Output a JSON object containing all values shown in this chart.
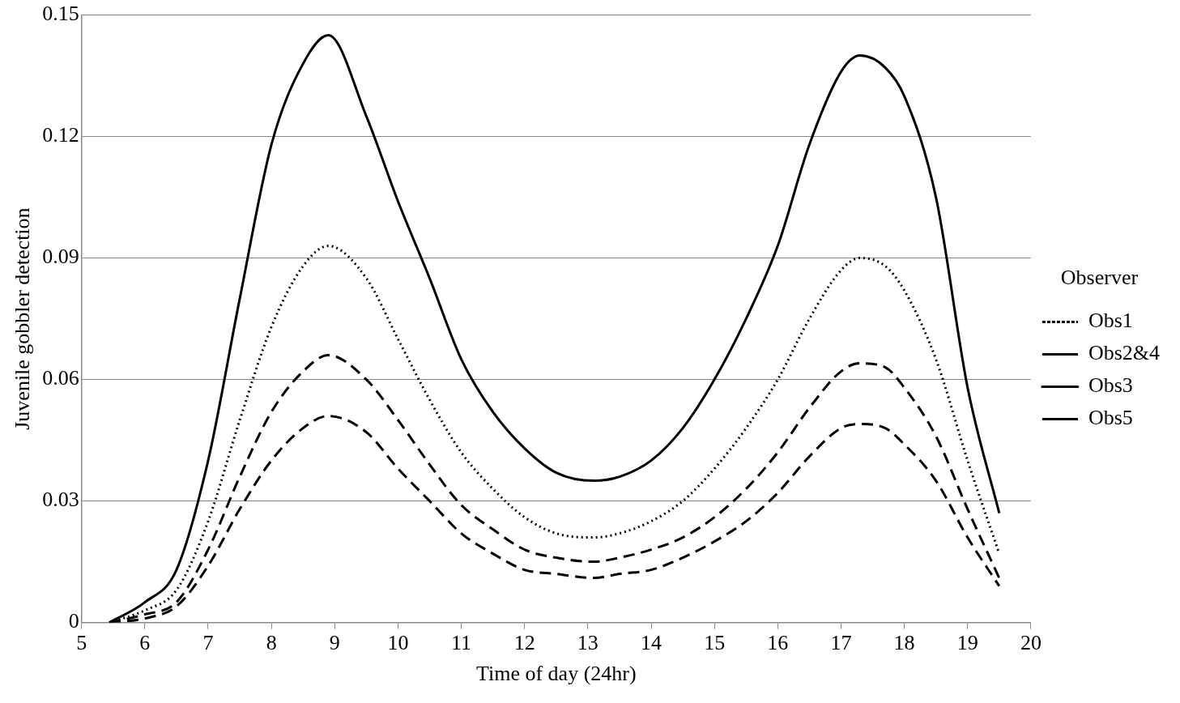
{
  "chart_data": {
    "type": "line",
    "xlabel": "Time of day (24hr)",
    "ylabel": "Juvenile gobbler detection",
    "legend_title": "Observer",
    "legend": "right",
    "grid": "y",
    "marker": "none",
    "xlim": [
      5,
      20
    ],
    "xticks": [
      5,
      6,
      7,
      8,
      9,
      10,
      11,
      12,
      13,
      14,
      15,
      16,
      17,
      18,
      19,
      20
    ],
    "ylim": [
      0,
      0.15
    ],
    "yticks": [
      0,
      0.03,
      0.06,
      0.09,
      0.12,
      0.15
    ],
    "x": [
      5.44,
      6,
      6.5,
      7,
      7.5,
      8,
      8.5,
      8.9,
      9.5,
      10,
      10.5,
      11,
      11.5,
      12,
      12.5,
      13.1,
      13.5,
      14,
      14.5,
      15,
      15.5,
      16,
      16.5,
      17,
      17.3,
      17.7,
      18,
      18.5,
      19,
      19.5
    ],
    "series": [
      {
        "name": "Obs1",
        "color": "#000000",
        "line_style": "dotted",
        "values": [
          0,
          0.003,
          0.008,
          0.025,
          0.05,
          0.073,
          0.088,
          0.093,
          0.085,
          0.07,
          0.055,
          0.042,
          0.033,
          0.026,
          0.022,
          0.021,
          0.022,
          0.025,
          0.03,
          0.038,
          0.048,
          0.06,
          0.075,
          0.087,
          0.09,
          0.088,
          0.082,
          0.065,
          0.04,
          0.017
        ]
      },
      {
        "name": "Obs2&4",
        "color": "#000000",
        "line_style": "dashed",
        "values": [
          0,
          0.002,
          0.005,
          0.018,
          0.036,
          0.052,
          0.062,
          0.066,
          0.06,
          0.05,
          0.039,
          0.029,
          0.023,
          0.018,
          0.016,
          0.015,
          0.016,
          0.018,
          0.021,
          0.026,
          0.033,
          0.042,
          0.053,
          0.062,
          0.064,
          0.063,
          0.058,
          0.046,
          0.028,
          0.011
        ]
      },
      {
        "name": "Obs3",
        "color": "#000000",
        "line_style": "solid",
        "values": [
          0,
          0.005,
          0.013,
          0.04,
          0.08,
          0.118,
          0.138,
          0.145,
          0.125,
          0.104,
          0.085,
          0.065,
          0.052,
          0.043,
          0.037,
          0.035,
          0.036,
          0.04,
          0.048,
          0.06,
          0.075,
          0.093,
          0.118,
          0.136,
          0.14,
          0.137,
          0.13,
          0.105,
          0.058,
          0.027
        ]
      },
      {
        "name": "Obs5",
        "color": "#000000",
        "line_style": "dashed",
        "values": [
          0,
          0.001,
          0.004,
          0.014,
          0.028,
          0.04,
          0.048,
          0.051,
          0.047,
          0.038,
          0.03,
          0.022,
          0.017,
          0.013,
          0.012,
          0.011,
          0.012,
          0.013,
          0.016,
          0.02,
          0.025,
          0.032,
          0.041,
          0.048,
          0.049,
          0.048,
          0.044,
          0.035,
          0.021,
          0.009
        ]
      }
    ]
  }
}
